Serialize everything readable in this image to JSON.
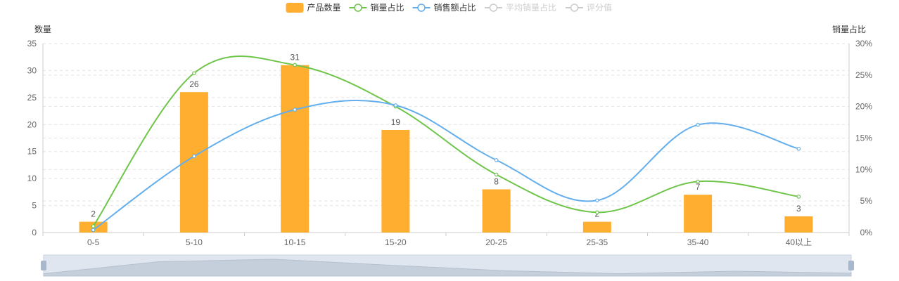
{
  "chart_data": {
    "type": "bar",
    "categories": [
      "0-5",
      "5-10",
      "10-15",
      "15-20",
      "20-25",
      "25-35",
      "35-40",
      "40以上"
    ],
    "series": [
      {
        "name": "产品数量",
        "kind": "bar",
        "axis": "left",
        "color": "#ffae2f",
        "values": [
          2,
          26,
          31,
          19,
          8,
          2,
          7,
          3
        ]
      },
      {
        "name": "销量占比",
        "kind": "line",
        "axis": "right",
        "color": "#6fc54a",
        "values": [
          1.0,
          25.3,
          26.6,
          20.0,
          9.2,
          3.2,
          8.1,
          5.7
        ]
      },
      {
        "name": "销售额占比",
        "kind": "line",
        "axis": "right",
        "color": "#63aeec",
        "values": [
          0.4,
          12.1,
          19.5,
          20.2,
          11.5,
          5.1,
          17.1,
          13.3
        ]
      }
    ],
    "legend": [
      {
        "name": "产品数量",
        "type": "bar",
        "color": "#ffae2f",
        "active": true
      },
      {
        "name": "销量占比",
        "type": "line",
        "color": "#6fc54a",
        "active": true
      },
      {
        "name": "销售额占比",
        "type": "line",
        "color": "#63aeec",
        "active": true
      },
      {
        "name": "平均销量占比",
        "type": "line",
        "color": "#cccccc",
        "active": false
      },
      {
        "name": "评分值",
        "type": "line",
        "color": "#cccccc",
        "active": false
      }
    ],
    "left_axis": {
      "label": "数量",
      "min": 0,
      "max": 35,
      "ticks": [
        0,
        5,
        10,
        15,
        20,
        25,
        30,
        35
      ]
    },
    "right_axis": {
      "label": "销量占比",
      "min": 0,
      "max": 30,
      "ticks": [
        0,
        5,
        10,
        15,
        20,
        25,
        30
      ],
      "unit": "%"
    },
    "grid": true,
    "legend_position": "top-center",
    "zoom_slider": true
  }
}
